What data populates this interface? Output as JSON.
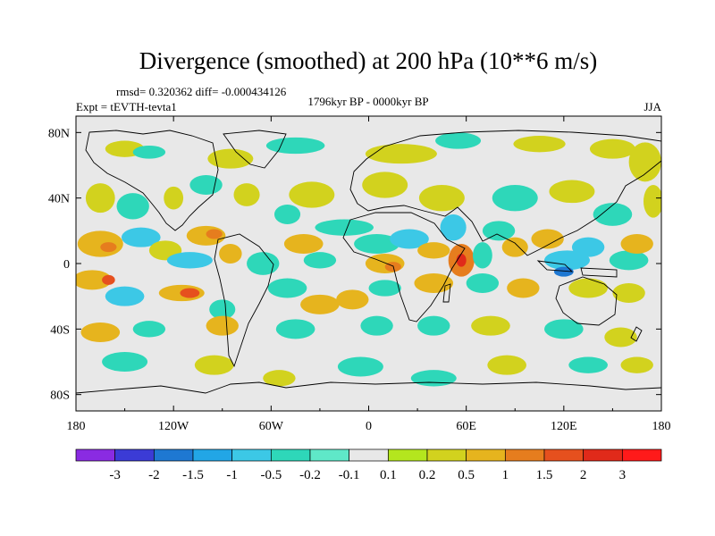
{
  "chart_data": {
    "type": "heatmap",
    "title": "Divergence (smoothed) at 200 hPa (10**6 m/s)",
    "stats_text": "rmsd= 0.320362 diff= -0.000434126",
    "experiment_text": "Expt = tEVTH-tevta1",
    "period_text": "1796kyr BP - 0000kyr BP",
    "season": "JJA",
    "x_axis": {
      "range": [
        -180,
        180
      ],
      "ticks": [
        -180,
        -120,
        -60,
        0,
        60,
        120,
        180
      ],
      "tick_labels": [
        "180",
        "120W",
        "60W",
        "0",
        "60E",
        "120E",
        "180"
      ]
    },
    "y_axis": {
      "range": [
        -90,
        90
      ],
      "ticks": [
        80,
        40,
        0,
        -40,
        -80
      ],
      "tick_labels": [
        "80N",
        "40N",
        "0",
        "40S",
        "80S"
      ]
    },
    "colorbar": {
      "labels": [
        "-3",
        "-2",
        "-1.5",
        "-1",
        "-0.5",
        "-0.2",
        "-0.1",
        "0.1",
        "0.2",
        "0.5",
        "1",
        "1.5",
        "2",
        "3"
      ],
      "colors": [
        "#8a2be2",
        "#3b3bd6",
        "#1e78d2",
        "#22a6e6",
        "#3cc8e6",
        "#2ed7b9",
        "#5fe8c8",
        "#e8e8e8",
        "#b4e61e",
        "#d2d21e",
        "#e6b41e",
        "#e67d1e",
        "#e6501e",
        "#e02a1a",
        "#ff1a1a"
      ]
    },
    "regions": [
      {
        "lon": -150,
        "lat": 70,
        "rx": 12,
        "ry": 5,
        "v": 0.3
      },
      {
        "lon": -135,
        "lat": 68,
        "rx": 10,
        "ry": 4,
        "v": -0.3
      },
      {
        "lon": -85,
        "lat": 64,
        "rx": 14,
        "ry": 6,
        "v": 0.4
      },
      {
        "lon": -45,
        "lat": 72,
        "rx": 18,
        "ry": 5,
        "v": -0.4
      },
      {
        "lon": 20,
        "lat": 67,
        "rx": 22,
        "ry": 6,
        "v": 0.4
      },
      {
        "lon": 55,
        "lat": 75,
        "rx": 14,
        "ry": 5,
        "v": -0.3
      },
      {
        "lon": 105,
        "lat": 73,
        "rx": 16,
        "ry": 5,
        "v": 0.4
      },
      {
        "lon": 150,
        "lat": 70,
        "rx": 14,
        "ry": 6,
        "v": 0.3
      },
      {
        "lon": 170,
        "lat": 62,
        "rx": 10,
        "ry": 12,
        "v": 0.3
      },
      {
        "lon": -165,
        "lat": 40,
        "rx": 9,
        "ry": 9,
        "v": 0.3
      },
      {
        "lon": -145,
        "lat": 35,
        "rx": 10,
        "ry": 8,
        "v": -0.3
      },
      {
        "lon": -120,
        "lat": 40,
        "rx": 6,
        "ry": 7,
        "v": 0.3
      },
      {
        "lon": -100,
        "lat": 48,
        "rx": 10,
        "ry": 6,
        "v": -0.3
      },
      {
        "lon": -75,
        "lat": 42,
        "rx": 8,
        "ry": 7,
        "v": 0.4
      },
      {
        "lon": -35,
        "lat": 42,
        "rx": 14,
        "ry": 8,
        "v": 0.3
      },
      {
        "lon": -50,
        "lat": 30,
        "rx": 8,
        "ry": 6,
        "v": -0.3
      },
      {
        "lon": 10,
        "lat": 48,
        "rx": 14,
        "ry": 8,
        "v": 0.3
      },
      {
        "lon": 45,
        "lat": 40,
        "rx": 14,
        "ry": 8,
        "v": 0.3
      },
      {
        "lon": 90,
        "lat": 40,
        "rx": 14,
        "ry": 8,
        "v": -0.3
      },
      {
        "lon": 125,
        "lat": 44,
        "rx": 14,
        "ry": 7,
        "v": 0.3
      },
      {
        "lon": 150,
        "lat": 30,
        "rx": 12,
        "ry": 7,
        "v": -0.3
      },
      {
        "lon": 175,
        "lat": 38,
        "rx": 6,
        "ry": 10,
        "v": 0.3
      },
      {
        "lon": -165,
        "lat": 12,
        "rx": 14,
        "ry": 8,
        "v": 0.6
      },
      {
        "lon": -160,
        "lat": 10,
        "rx": 5,
        "ry": 3,
        "v": 1.2
      },
      {
        "lon": -140,
        "lat": 16,
        "rx": 12,
        "ry": 6,
        "v": -0.6
      },
      {
        "lon": -125,
        "lat": 8,
        "rx": 10,
        "ry": 6,
        "v": 0.4
      },
      {
        "lon": -100,
        "lat": 17,
        "rx": 12,
        "ry": 6,
        "v": 0.6
      },
      {
        "lon": -95,
        "lat": 18,
        "rx": 5,
        "ry": 3,
        "v": 1.2
      },
      {
        "lon": -110,
        "lat": 2,
        "rx": 14,
        "ry": 5,
        "v": -0.6
      },
      {
        "lon": -85,
        "lat": 6,
        "rx": 7,
        "ry": 6,
        "v": 0.5
      },
      {
        "lon": -65,
        "lat": 0,
        "rx": 10,
        "ry": 7,
        "v": -0.5
      },
      {
        "lon": -40,
        "lat": 12,
        "rx": 12,
        "ry": 6,
        "v": 0.5
      },
      {
        "lon": -30,
        "lat": 2,
        "rx": 10,
        "ry": 5,
        "v": -0.4
      },
      {
        "lon": -15,
        "lat": 22,
        "rx": 18,
        "ry": 5,
        "v": -0.3
      },
      {
        "lon": 5,
        "lat": 12,
        "rx": 14,
        "ry": 6,
        "v": -0.4
      },
      {
        "lon": 10,
        "lat": 0,
        "rx": 12,
        "ry": 6,
        "v": 0.5
      },
      {
        "lon": 15,
        "lat": -2,
        "rx": 5,
        "ry": 3,
        "v": 1.2
      },
      {
        "lon": 25,
        "lat": 15,
        "rx": 12,
        "ry": 6,
        "v": -0.7
      },
      {
        "lon": 40,
        "lat": 8,
        "rx": 10,
        "ry": 5,
        "v": 0.5
      },
      {
        "lon": 52,
        "lat": 22,
        "rx": 8,
        "ry": 8,
        "v": -0.6
      },
      {
        "lon": 57,
        "lat": 2,
        "rx": 8,
        "ry": 10,
        "v": 1.0
      },
      {
        "lon": 57,
        "lat": 2,
        "rx": 3,
        "ry": 4,
        "v": 2.5
      },
      {
        "lon": 70,
        "lat": 5,
        "rx": 6,
        "ry": 8,
        "v": -0.5
      },
      {
        "lon": 80,
        "lat": 20,
        "rx": 10,
        "ry": 6,
        "v": -0.4
      },
      {
        "lon": 90,
        "lat": 10,
        "rx": 8,
        "ry": 6,
        "v": 0.5
      },
      {
        "lon": 110,
        "lat": 15,
        "rx": 10,
        "ry": 6,
        "v": 0.6
      },
      {
        "lon": 122,
        "lat": 2,
        "rx": 14,
        "ry": 6,
        "v": -0.7
      },
      {
        "lon": 120,
        "lat": -5,
        "rx": 6,
        "ry": 3,
        "v": -1.7
      },
      {
        "lon": 135,
        "lat": 10,
        "rx": 10,
        "ry": 6,
        "v": -0.6
      },
      {
        "lon": 160,
        "lat": 2,
        "rx": 12,
        "ry": 6,
        "v": -0.5
      },
      {
        "lon": 165,
        "lat": 12,
        "rx": 10,
        "ry": 6,
        "v": 0.5
      },
      {
        "lon": -170,
        "lat": -10,
        "rx": 12,
        "ry": 6,
        "v": 0.8
      },
      {
        "lon": -160,
        "lat": -10,
        "rx": 4,
        "ry": 3,
        "v": 1.6
      },
      {
        "lon": -150,
        "lat": -20,
        "rx": 12,
        "ry": 6,
        "v": -0.6
      },
      {
        "lon": -115,
        "lat": -18,
        "rx": 14,
        "ry": 5,
        "v": 0.7
      },
      {
        "lon": -110,
        "lat": -18,
        "rx": 6,
        "ry": 3,
        "v": 1.5
      },
      {
        "lon": -90,
        "lat": -28,
        "rx": 8,
        "ry": 6,
        "v": -0.4
      },
      {
        "lon": -50,
        "lat": -15,
        "rx": 12,
        "ry": 6,
        "v": -0.5
      },
      {
        "lon": -30,
        "lat": -25,
        "rx": 12,
        "ry": 6,
        "v": 0.7
      },
      {
        "lon": -10,
        "lat": -22,
        "rx": 10,
        "ry": 6,
        "v": 0.8
      },
      {
        "lon": 10,
        "lat": -15,
        "rx": 10,
        "ry": 5,
        "v": -0.5
      },
      {
        "lon": 40,
        "lat": -12,
        "rx": 12,
        "ry": 6,
        "v": 0.6
      },
      {
        "lon": 70,
        "lat": -12,
        "rx": 10,
        "ry": 6,
        "v": -0.4
      },
      {
        "lon": 95,
        "lat": -15,
        "rx": 10,
        "ry": 6,
        "v": 0.5
      },
      {
        "lon": 135,
        "lat": -15,
        "rx": 12,
        "ry": 6,
        "v": 0.4
      },
      {
        "lon": 160,
        "lat": -18,
        "rx": 10,
        "ry": 6,
        "v": 0.4
      },
      {
        "lon": -165,
        "lat": -42,
        "rx": 12,
        "ry": 6,
        "v": 0.5
      },
      {
        "lon": -135,
        "lat": -40,
        "rx": 10,
        "ry": 5,
        "v": -0.3
      },
      {
        "lon": -90,
        "lat": -38,
        "rx": 10,
        "ry": 6,
        "v": 0.5
      },
      {
        "lon": -45,
        "lat": -40,
        "rx": 12,
        "ry": 6,
        "v": -0.3
      },
      {
        "lon": 5,
        "lat": -38,
        "rx": 10,
        "ry": 6,
        "v": -0.3
      },
      {
        "lon": 40,
        "lat": -38,
        "rx": 10,
        "ry": 6,
        "v": -0.4
      },
      {
        "lon": 75,
        "lat": -38,
        "rx": 12,
        "ry": 6,
        "v": 0.3
      },
      {
        "lon": 120,
        "lat": -40,
        "rx": 12,
        "ry": 6,
        "v": -0.3
      },
      {
        "lon": 155,
        "lat": -45,
        "rx": 10,
        "ry": 6,
        "v": 0.3
      },
      {
        "lon": -150,
        "lat": -60,
        "rx": 14,
        "ry": 6,
        "v": -0.3
      },
      {
        "lon": -95,
        "lat": -62,
        "rx": 12,
        "ry": 6,
        "v": 0.3
      },
      {
        "lon": -55,
        "lat": -70,
        "rx": 10,
        "ry": 5,
        "v": 0.3
      },
      {
        "lon": -5,
        "lat": -63,
        "rx": 14,
        "ry": 6,
        "v": -0.3
      },
      {
        "lon": 40,
        "lat": -70,
        "rx": 14,
        "ry": 5,
        "v": -0.3
      },
      {
        "lon": 85,
        "lat": -62,
        "rx": 12,
        "ry": 6,
        "v": 0.3
      },
      {
        "lon": 135,
        "lat": -62,
        "rx": 12,
        "ry": 5,
        "v": -0.3
      },
      {
        "lon": 165,
        "lat": -62,
        "rx": 10,
        "ry": 5,
        "v": 0.3
      }
    ]
  }
}
